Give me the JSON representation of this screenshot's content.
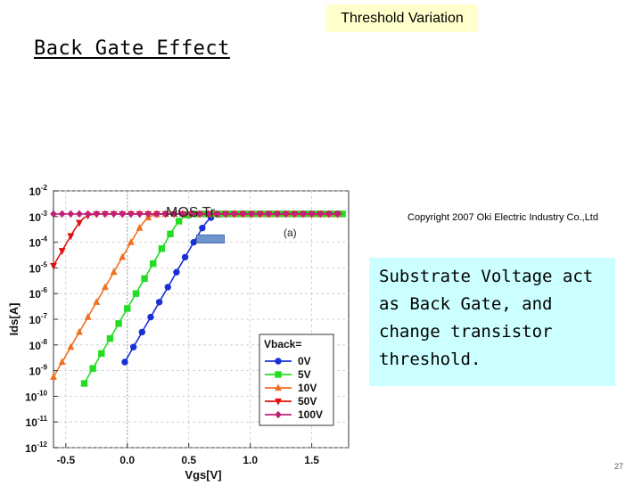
{
  "slide": {
    "badge": "Threshold Variation",
    "heading": "Back Gate Effect",
    "mos_label": "MOS Tr.",
    "copyright": "Copyright 2007 Oki Electric Industry Co.,Ltd",
    "note": "Substrate Voltage act as Back Gate, and change transistor threshold.",
    "page_number": "27"
  },
  "chart_data": {
    "type": "line",
    "title": "",
    "panel_label": "(a)",
    "xlabel": "Vgs[V]",
    "ylabel": "Ids[A]",
    "xlim": [
      -0.6,
      1.8
    ],
    "ylim_exponent": [
      -12,
      -2
    ],
    "y_scale": "log",
    "x_ticks": [
      "-0.5",
      "0.0",
      "0.5",
      "1.0",
      "1.5"
    ],
    "x_tick_values": [
      -0.5,
      0.0,
      0.5,
      1.0,
      1.5
    ],
    "y_ticks": [
      {
        "base": "10",
        "exp": "-2",
        "value": -2
      },
      {
        "base": "10",
        "exp": "-3",
        "value": -3
      },
      {
        "base": "10",
        "exp": "-4",
        "value": -4
      },
      {
        "base": "10",
        "exp": "-5",
        "value": -5
      },
      {
        "base": "10",
        "exp": "-6",
        "value": -6
      },
      {
        "base": "10",
        "exp": "-7",
        "value": -7
      },
      {
        "base": "10",
        "exp": "-8",
        "value": -8
      },
      {
        "base": "10",
        "exp": "-9",
        "value": -9
      },
      {
        "base": "10",
        "exp": "-10",
        "value": -10
      },
      {
        "base": "10",
        "exp": "-11",
        "value": -11
      },
      {
        "base": "10",
        "exp": "-12",
        "value": -12
      }
    ],
    "legend_title": "Vback=",
    "legend_position": "bottom-right",
    "series": [
      {
        "name": "0V",
        "color": "#1a2fd6",
        "marker": "circle",
        "vt": 0.48,
        "vstart": -0.02
      },
      {
        "name": "5V",
        "color": "#22dd22",
        "marker": "square",
        "vt": 0.25,
        "vstart": -0.35
      },
      {
        "name": "10V",
        "color": "#f07020",
        "marker": "triangle-up",
        "vt": -0.03,
        "vstart": -0.6
      },
      {
        "name": "50V",
        "color": "#e01010",
        "marker": "triangle-down",
        "vt": -0.55,
        "vstart": -0.6
      },
      {
        "name": "100V",
        "color": "#c0207a",
        "marker": "diamond",
        "vt": -1.2,
        "vstart": -0.6
      }
    ],
    "model": {
      "subthreshold_slope_V_per_dec": 0.12,
      "log_ids_at_vt": -4.5,
      "saturation_log_ids": -2.9
    }
  }
}
